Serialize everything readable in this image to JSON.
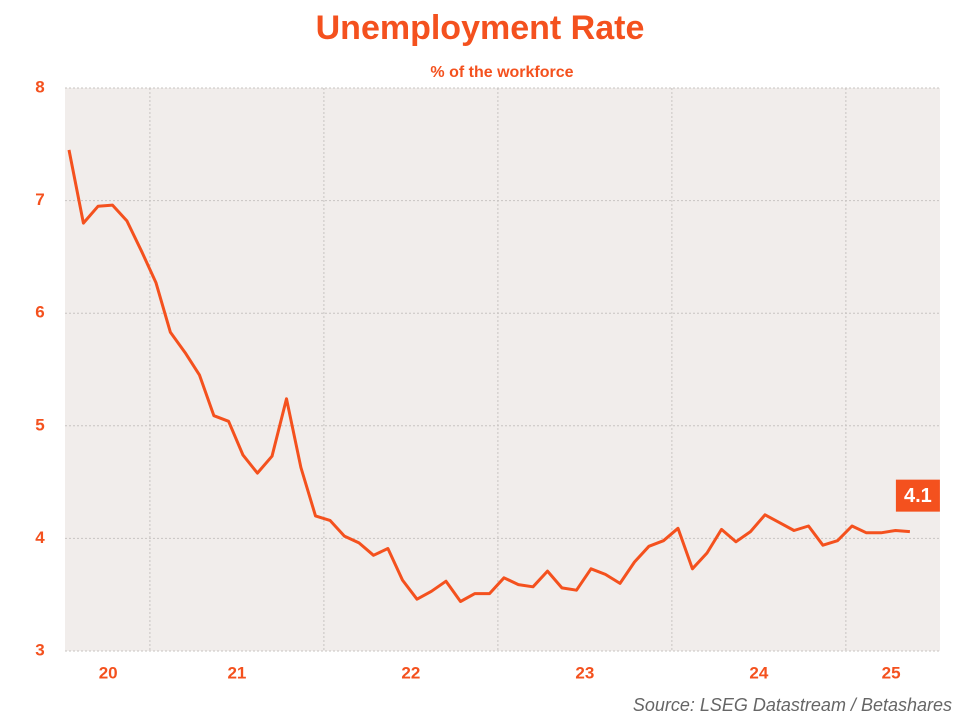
{
  "chart_data": {
    "type": "line",
    "title": "Unemployment Rate",
    "subtitle": "% of the workforce",
    "source": "Source: LSEG Datastream / Betashares",
    "annotation": "4.1",
    "color": "#f4511e",
    "grid": true,
    "xlim": [
      2020.512,
      2025.541
    ],
    "xticks": [
      {
        "value": 2020.76,
        "label": "20"
      },
      {
        "value": 2021.5,
        "label": "21"
      },
      {
        "value": 2022.5,
        "label": "22"
      },
      {
        "value": 2023.5,
        "label": "23"
      },
      {
        "value": 2024.5,
        "label": "24"
      },
      {
        "value": 2025.26,
        "label": "25"
      }
    ],
    "xgrid": [
      2021,
      2022,
      2023,
      2024,
      2025
    ],
    "ylim": [
      3,
      8
    ],
    "yticks": [
      3,
      4,
      5,
      6,
      7,
      8
    ],
    "x": [
      2020.535,
      2020.618,
      2020.702,
      2020.785,
      2020.868,
      2020.952,
      2021.035,
      2021.118,
      2021.202,
      2021.285,
      2021.368,
      2021.452,
      2021.535,
      2021.618,
      2021.702,
      2021.785,
      2021.868,
      2021.952,
      2022.035,
      2022.118,
      2022.202,
      2022.285,
      2022.368,
      2022.452,
      2022.535,
      2022.618,
      2022.702,
      2022.785,
      2022.868,
      2022.952,
      2023.035,
      2023.118,
      2023.202,
      2023.285,
      2023.368,
      2023.452,
      2023.535,
      2023.618,
      2023.702,
      2023.785,
      2023.868,
      2023.952,
      2024.035,
      2024.118,
      2024.202,
      2024.285,
      2024.368,
      2024.452,
      2024.535,
      2024.618,
      2024.702,
      2024.785,
      2024.868,
      2024.952,
      2025.035,
      2025.118,
      2025.202,
      2025.285,
      2025.368
    ],
    "values": [
      7.45,
      6.8,
      6.95,
      6.96,
      6.82,
      6.55,
      6.27,
      5.83,
      5.65,
      5.45,
      5.09,
      5.04,
      4.74,
      4.58,
      4.73,
      5.24,
      4.63,
      4.2,
      4.16,
      4.02,
      3.96,
      3.85,
      3.91,
      3.63,
      3.46,
      3.53,
      3.62,
      3.44,
      3.51,
      3.51,
      3.65,
      3.59,
      3.57,
      3.71,
      3.56,
      3.54,
      3.73,
      3.68,
      3.6,
      3.79,
      3.93,
      3.98,
      4.09,
      3.73,
      3.87,
      4.08,
      3.97,
      4.06,
      4.21,
      4.14,
      4.07,
      4.11,
      3.94,
      3.98,
      4.11,
      4.05,
      4.05,
      4.07,
      4.06
    ]
  }
}
